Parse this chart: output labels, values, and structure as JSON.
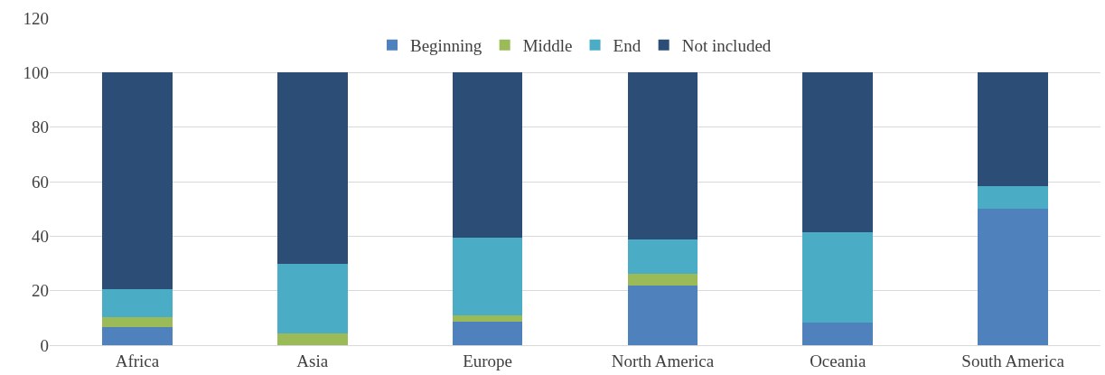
{
  "chart_data": {
    "type": "bar",
    "stacked": true,
    "categories": [
      "Africa",
      "Asia",
      "Europe",
      "North America",
      "Oceania",
      "South America"
    ],
    "series": [
      {
        "name": "Beginning",
        "color": "#4f81bd",
        "values": [
          6.7,
          0,
          8.7,
          21.8,
          8.4,
          50
        ]
      },
      {
        "name": "Middle",
        "color": "#9bbb59",
        "values": [
          3.7,
          4.4,
          2.4,
          4.4,
          0,
          0
        ]
      },
      {
        "name": "End",
        "color": "#4bacc6",
        "values": [
          10.1,
          25.5,
          28.2,
          12.7,
          33.2,
          8.4
        ]
      },
      {
        "name": "Not included",
        "color": "#2c4d75",
        "values": [
          79.5,
          70.1,
          60.7,
          61.1,
          58.4,
          41.6
        ]
      }
    ],
    "ylim": [
      0,
      120
    ],
    "yticks": [
      0,
      20,
      40,
      60,
      80,
      100,
      120
    ],
    "grid": "y",
    "legend": "top"
  }
}
